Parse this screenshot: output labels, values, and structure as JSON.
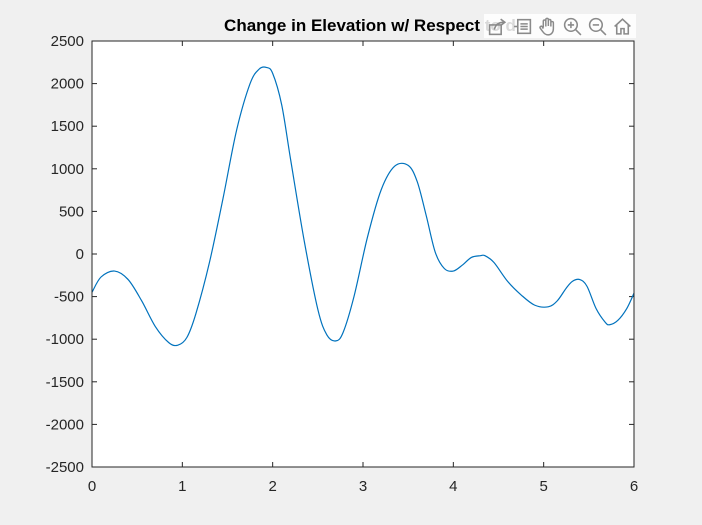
{
  "colors": {
    "figure_background": "#f0f0f0",
    "axes_background": "#ffffff",
    "line": "#0072bd",
    "axis": "#262626",
    "toolbar_icon": "#8a8a8a"
  },
  "toolbar": {
    "icons": [
      "export-icon",
      "brush-icon",
      "pan-hand-icon",
      "zoom-in-icon",
      "zoom-out-icon",
      "home-icon"
    ]
  },
  "chart_data": {
    "type": "line",
    "title": "Change in Elevation w/ Respect to d",
    "xlabel": "",
    "ylabel": "",
    "xlim": [
      0,
      6
    ],
    "ylim": [
      -2500,
      2500
    ],
    "xticks": [
      0,
      1,
      2,
      3,
      4,
      5,
      6
    ],
    "yticks": [
      2500,
      2000,
      1500,
      1000,
      500,
      0,
      -500,
      -1000,
      -1500,
      -2000,
      -2500
    ],
    "grid": false,
    "series": [
      {
        "x": [
          0,
          0.1,
          0.25,
          0.4,
          0.55,
          0.7,
          0.85,
          0.95,
          1.05,
          1.15,
          1.3,
          1.45,
          1.6,
          1.75,
          1.85,
          1.93,
          2.0,
          2.1,
          2.2,
          2.35,
          2.5,
          2.6,
          2.7,
          2.78,
          2.9,
          3.05,
          3.2,
          3.35,
          3.5,
          3.6,
          3.7,
          3.8,
          3.9,
          4.0,
          4.1,
          4.2,
          4.3,
          4.35,
          4.45,
          4.6,
          4.75,
          4.9,
          5.05,
          5.15,
          5.25,
          5.32,
          5.4,
          5.48,
          5.58,
          5.68,
          5.73,
          5.82,
          5.92,
          6.0
        ],
        "y": [
          -450,
          -270,
          -200,
          -300,
          -550,
          -850,
          -1040,
          -1070,
          -980,
          -700,
          -100,
          650,
          1450,
          2000,
          2170,
          2190,
          2120,
          1750,
          1100,
          150,
          -650,
          -950,
          -1020,
          -920,
          -500,
          200,
          750,
          1030,
          1040,
          850,
          450,
          20,
          -170,
          -200,
          -130,
          -40,
          -20,
          -20,
          -100,
          -320,
          -480,
          -600,
          -620,
          -550,
          -400,
          -320,
          -300,
          -380,
          -640,
          -800,
          -830,
          -780,
          -640,
          -460
        ]
      }
    ]
  }
}
